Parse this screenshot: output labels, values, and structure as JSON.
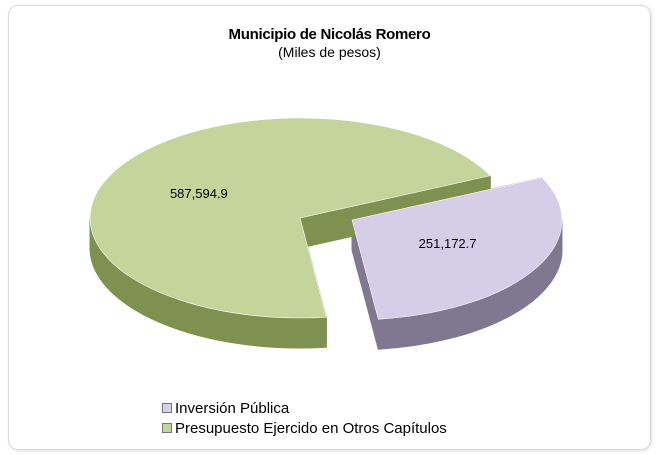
{
  "chart_data": {
    "type": "pie",
    "title": "Municipio de Nicolás Romero",
    "subtitle": "(Miles de pesos)",
    "slices": [
      {
        "label": "Inversión Pública",
        "value": 251172.7,
        "value_label": "251,172.7",
        "color": "#d6cde8",
        "side_color": "#807890",
        "exploded": true
      },
      {
        "label": "Presupuesto Ejercido en Otros Capítulos",
        "value": 587594.9,
        "value_label": "587,594.9",
        "color": "#c4d49a",
        "side_color": "#7f9150",
        "exploded": false
      }
    ],
    "legend_position": "bottom-left",
    "style": "3d-exploded"
  }
}
